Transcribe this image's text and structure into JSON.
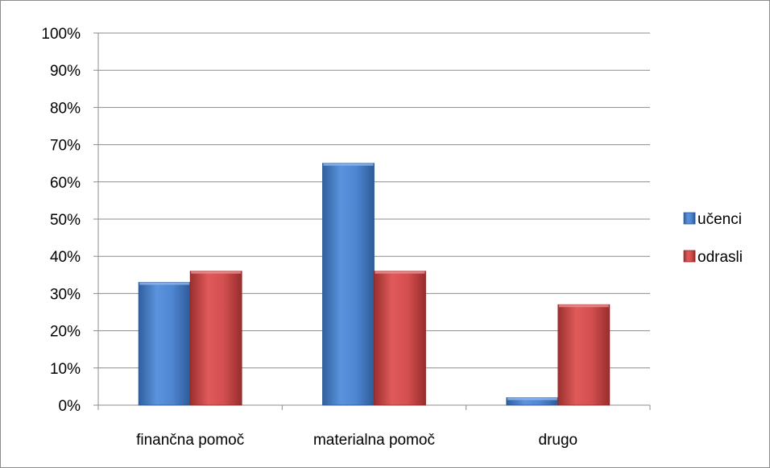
{
  "chart_data": {
    "type": "bar",
    "categories": [
      "finančna pomoč",
      "materialna pomoč",
      "drugo"
    ],
    "series": [
      {
        "name": "učenci",
        "values": [
          33,
          65,
          2
        ],
        "color": "#4a7fc9"
      },
      {
        "name": "odrasli",
        "values": [
          36,
          36,
          27
        ],
        "color": "#c94a4a"
      }
    ],
    "y_ticks": [
      "0%",
      "10%",
      "20%",
      "30%",
      "40%",
      "50%",
      "60%",
      "70%",
      "80%",
      "90%",
      "100%"
    ],
    "ylim": [
      0,
      100
    ],
    "grid": true,
    "legend_position": "right"
  }
}
